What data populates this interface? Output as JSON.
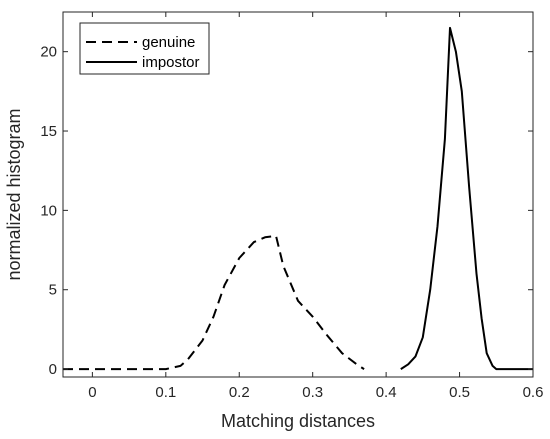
{
  "chart_data": {
    "type": "line",
    "xlabel": "Matching distances",
    "ylabel": "normalized histogram",
    "xlim": [
      -0.04,
      0.6
    ],
    "ylim": [
      -0.5,
      22.5
    ],
    "xticks": [
      0,
      0.1,
      0.2,
      0.3,
      0.4,
      0.5,
      0.6
    ],
    "xtick_labels": [
      "0",
      "0.1",
      "0.2",
      "0.3",
      "0.4",
      "0.5",
      "0.6"
    ],
    "yticks": [
      0,
      5,
      10,
      15,
      20
    ],
    "ytick_labels": [
      "0",
      "5",
      "10",
      "15",
      "20"
    ],
    "grid": false,
    "legend": "top-left",
    "series": [
      {
        "name": "genuine",
        "style": "dashed",
        "color": "#000000",
        "x": [
          -0.04,
          0.1,
          0.12,
          0.13,
          0.15,
          0.165,
          0.18,
          0.2,
          0.22,
          0.235,
          0.25,
          0.26,
          0.28,
          0.3,
          0.32,
          0.34,
          0.36,
          0.37
        ],
        "y": [
          0,
          0,
          0.2,
          0.6,
          1.8,
          3.3,
          5.3,
          7.0,
          8.0,
          8.3,
          8.4,
          6.5,
          4.3,
          3.3,
          2.1,
          1.0,
          0.3,
          0
        ]
      },
      {
        "name": "impostor",
        "style": "solid",
        "color": "#000000",
        "x": [
          0.42,
          0.43,
          0.44,
          0.45,
          0.46,
          0.47,
          0.48,
          0.487,
          0.495,
          0.503,
          0.513,
          0.523,
          0.53,
          0.537,
          0.545,
          0.55,
          0.6
        ],
        "y": [
          0,
          0.3,
          0.8,
          2.0,
          5.0,
          9.0,
          14.5,
          21.5,
          20.0,
          17.5,
          11.5,
          6.0,
          3.2,
          1.0,
          0.2,
          0,
          0
        ]
      }
    ]
  }
}
